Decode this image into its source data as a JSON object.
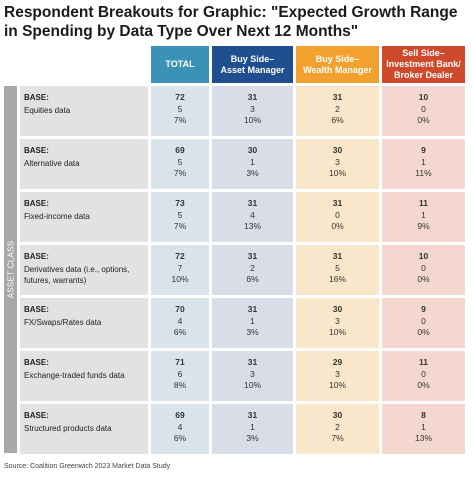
{
  "title": "Respondent Breakouts for Graphic: \"Expected Growth Range in Spending by Data Type Over Next 12 Months\"",
  "headers": {
    "total": "TOTAL",
    "asset_manager": "Buy Side–\nAsset Manager",
    "wealth_manager": "Buy Side–\nWealth Manager",
    "sell_side": "Sell Side–\nInvestment Bank/\nBroker Dealer"
  },
  "side_label": "ASSET CLASS",
  "base_label": "BASE:",
  "rows": [
    {
      "name": "Equities data",
      "total": [
        "72",
        "5",
        "7%"
      ],
      "asset": [
        "31",
        "3",
        "10%"
      ],
      "wealth": [
        "31",
        "2",
        "6%"
      ],
      "sell": [
        "10",
        "0",
        "0%"
      ]
    },
    {
      "name": "Alternative  data",
      "total": [
        "69",
        "5",
        "7%"
      ],
      "asset": [
        "30",
        "1",
        "3%"
      ],
      "wealth": [
        "30",
        "3",
        "10%"
      ],
      "sell": [
        "9",
        "1",
        "11%"
      ]
    },
    {
      "name": "Fixed-income data",
      "total": [
        "73",
        "5",
        "7%"
      ],
      "asset": [
        "31",
        "4",
        "13%"
      ],
      "wealth": [
        "31",
        "0",
        "0%"
      ],
      "sell": [
        "11",
        "1",
        "9%"
      ]
    },
    {
      "name": "Derivatives data (i.e., options, futures, warrants)",
      "total": [
        "72",
        "7",
        "10%"
      ],
      "asset": [
        "31",
        "2",
        "6%"
      ],
      "wealth": [
        "31",
        "5",
        "16%"
      ],
      "sell": [
        "10",
        "0",
        "0%"
      ]
    },
    {
      "name": "FX/Swaps/Rates data",
      "total": [
        "70",
        "4",
        "6%"
      ],
      "asset": [
        "31",
        "1",
        "3%"
      ],
      "wealth": [
        "30",
        "3",
        "10%"
      ],
      "sell": [
        "9",
        "0",
        "0%"
      ]
    },
    {
      "name": "Exchange-traded funds data",
      "total": [
        "71",
        "6",
        "8%"
      ],
      "asset": [
        "31",
        "3",
        "10%"
      ],
      "wealth": [
        "29",
        "3",
        "10%"
      ],
      "sell": [
        "11",
        "0",
        "0%"
      ]
    },
    {
      "name": "Structured products data",
      "total": [
        "69",
        "4",
        "6%"
      ],
      "asset": [
        "31",
        "1",
        "3%"
      ],
      "wealth": [
        "30",
        "2",
        "7%"
      ],
      "sell": [
        "8",
        "1",
        "13%"
      ]
    }
  ],
  "source": "Source: Coalition Greenwich 2023 Market Data Study",
  "colors": {
    "total_header": "#3a92b6",
    "asset_header": "#1f4f91",
    "wealth_header": "#f2a12e",
    "sell_header": "#cf4a2c"
  }
}
